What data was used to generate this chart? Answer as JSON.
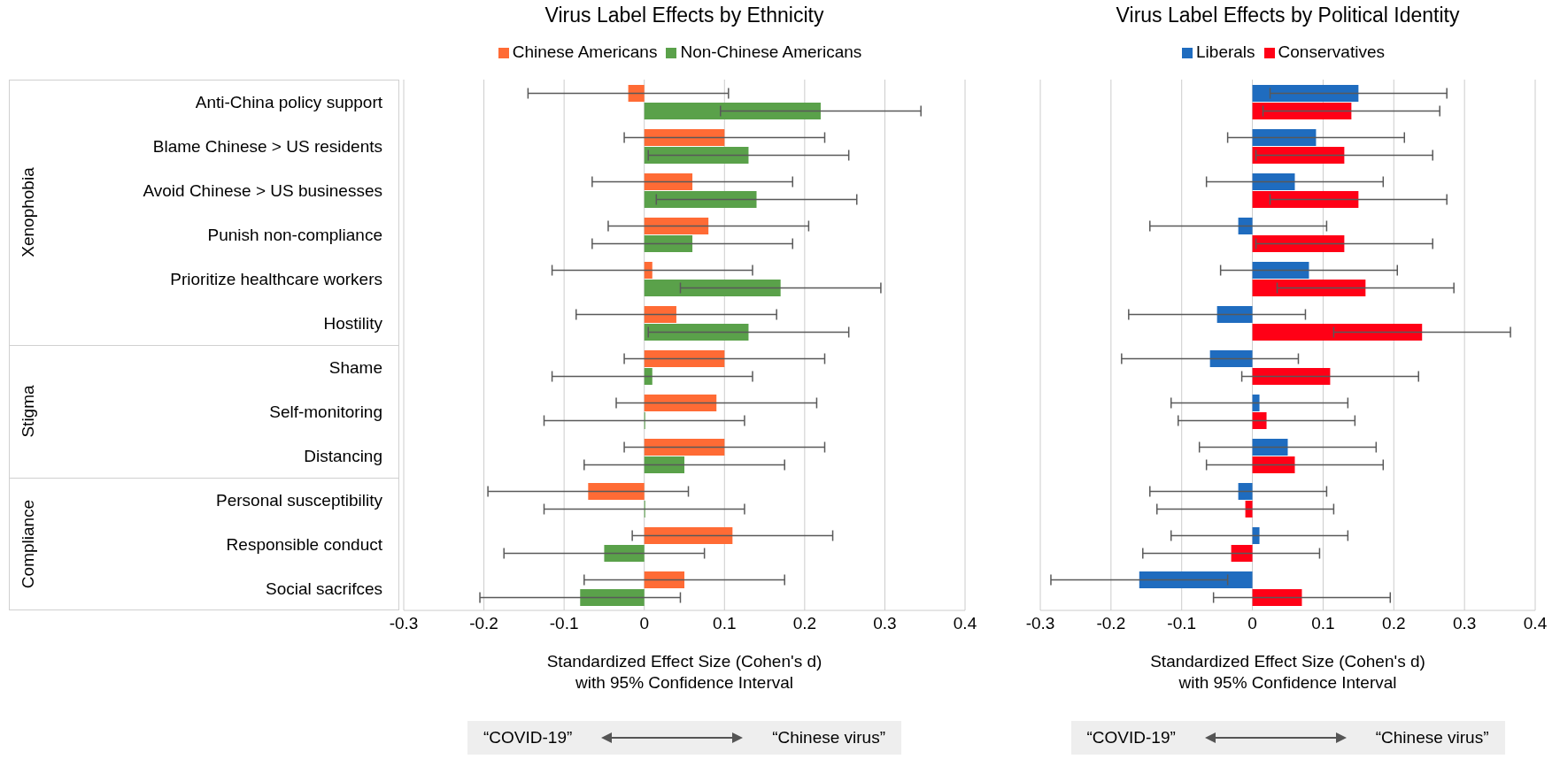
{
  "chart_data": [
    {
      "type": "bar",
      "orientation": "horizontal",
      "title": "Virus Label Effects by Ethnicity",
      "xlabel": "Standardized Effect Size (Cohen's d) with 95% Confidence Interval",
      "categories": [
        "Anti-China policy support",
        "Blame Chinese > US residents",
        "Avoid Chinese > US businesses",
        "Punish non-compliance",
        "Prioritize healthcare workers",
        "Hostility",
        "Shame",
        "Self-monitoring",
        "Distancing",
        "Personal susceptibility",
        "Responsible conduct",
        "Social sacrifces"
      ],
      "series": [
        {
          "name": "Chinese Americans",
          "color": "#ff6b35",
          "values": [
            -0.02,
            0.1,
            0.06,
            0.08,
            0.01,
            0.04,
            0.1,
            0.09,
            0.1,
            -0.07,
            0.11,
            0.05
          ],
          "errors": [
            0.125,
            0.125,
            0.125,
            0.125,
            0.125,
            0.125,
            0.125,
            0.125,
            0.125,
            0.125,
            0.125,
            0.125
          ]
        },
        {
          "name": "Non-Chinese Americans",
          "color": "#5aa14a",
          "values": [
            0.22,
            0.13,
            0.14,
            0.06,
            0.17,
            0.13,
            0.01,
            0,
            0.05,
            0,
            -0.05,
            -0.08
          ],
          "errors": [
            0.125,
            0.125,
            0.125,
            0.125,
            0.125,
            0.125,
            0.125,
            0.125,
            0.125,
            0.125,
            0.125,
            0.125
          ]
        }
      ],
      "xlim": [
        -0.3,
        0.4
      ],
      "xticks": [
        -0.3,
        -0.2,
        -0.1,
        0,
        0.1,
        0.2,
        0.3,
        0.4
      ],
      "grid": "x",
      "legend": "top",
      "annotations": [
        "Xenophobia",
        "Stigma",
        "Compliance",
        "“COVID-19”",
        "“Chinese virus”"
      ]
    },
    {
      "type": "bar",
      "orientation": "horizontal",
      "title": "Virus Label Effects by Political Identity",
      "xlabel": "Standardized Effect Size (Cohen's d) with 95% Confidence Interval",
      "categories": [
        null,
        null,
        null,
        null,
        null,
        null,
        null,
        null,
        null,
        null,
        null,
        null
      ],
      "series": [
        {
          "name": "Liberals",
          "color": "#1f6cbf",
          "values": [
            0.15,
            0.09,
            0.06,
            -0.02,
            0.08,
            -0.05,
            -0.06,
            0.01,
            0.05,
            -0.02,
            0.01,
            -0.16
          ],
          "errors": [
            0.125,
            0.125,
            0.125,
            0.125,
            0.125,
            0.125,
            0.125,
            0.125,
            0.125,
            0.125,
            0.125,
            0.125
          ]
        },
        {
          "name": "Conservatives",
          "color": "#ff0016",
          "values": [
            0.14,
            0.13,
            0.15,
            0.13,
            0.16,
            0.24,
            0.11,
            0.02,
            0.06,
            -0.01,
            -0.03,
            0.07
          ],
          "errors": [
            0.125,
            0.125,
            0.125,
            0.125,
            0.125,
            0.125,
            0.125,
            0.125,
            0.125,
            0.125,
            0.125,
            0.125
          ]
        }
      ],
      "xlim": [
        -0.3,
        0.4
      ],
      "xticks": [
        -0.3,
        -0.2,
        -0.1,
        0,
        0.1,
        0.2,
        0.3,
        0.4
      ],
      "grid": "x",
      "legend": "top",
      "tick_labels": "x",
      "annotations": [
        "“COVID-19”",
        "“Chinese virus”"
      ]
    }
  ]
}
